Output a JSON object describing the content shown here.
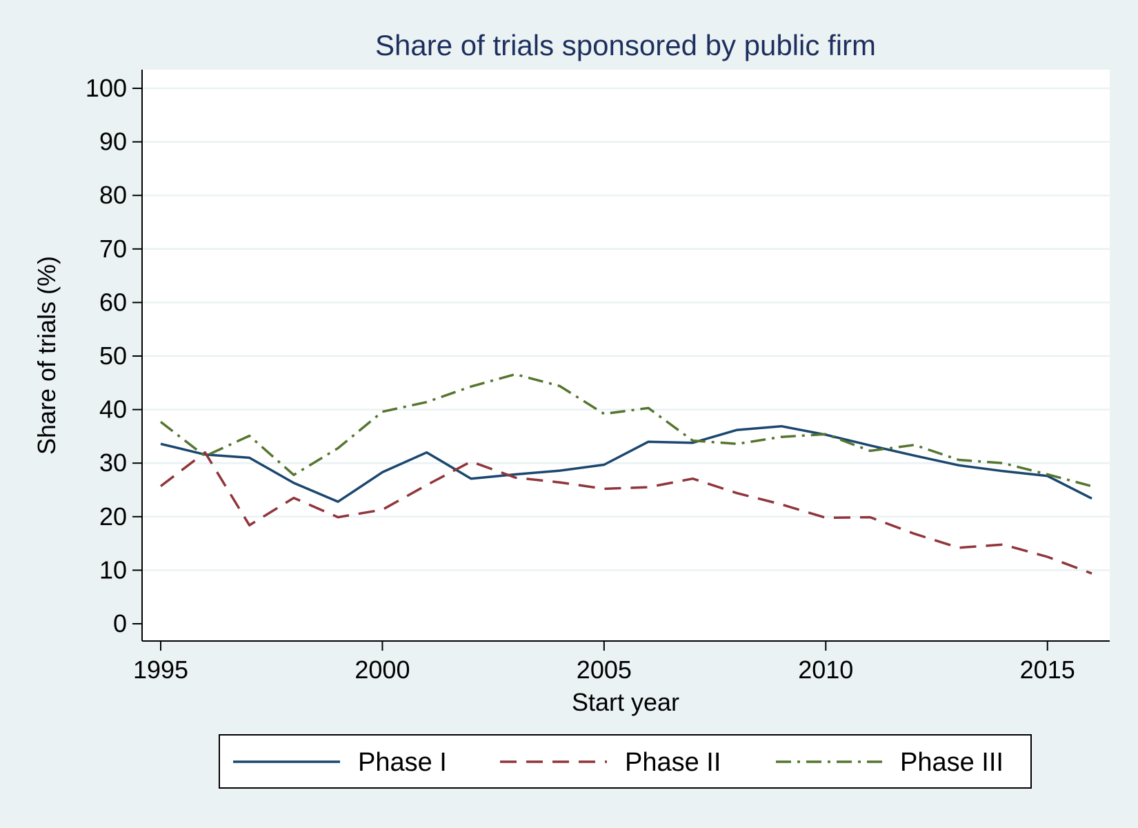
{
  "chart_data": {
    "type": "line",
    "title": "Share of trials sponsored by public firm",
    "xlabel": "Start year",
    "ylabel": "Share of trials (%)",
    "xlim": [
      1995,
      2016
    ],
    "ylim": [
      0,
      100
    ],
    "xticks": [
      1995,
      2000,
      2005,
      2010,
      2015
    ],
    "yticks": [
      0,
      10,
      20,
      30,
      40,
      50,
      60,
      70,
      80,
      90,
      100
    ],
    "grid": true,
    "legend_position": "bottom",
    "x": [
      1995,
      1996,
      1997,
      1998,
      1999,
      2000,
      2001,
      2002,
      2003,
      2004,
      2005,
      2006,
      2007,
      2008,
      2009,
      2010,
      2011,
      2012,
      2013,
      2014,
      2015,
      2016
    ],
    "series": [
      {
        "name": "Phase I",
        "color": "#1a476f",
        "dash": "solid",
        "values": [
          33.6,
          31.6,
          31.0,
          26.3,
          22.8,
          28.3,
          32.0,
          27.1,
          27.9,
          28.6,
          29.7,
          34.0,
          33.8,
          36.2,
          36.9,
          35.3,
          33.3,
          31.4,
          29.6,
          28.5,
          27.6,
          23.4
        ]
      },
      {
        "name": "Phase II",
        "color": "#90353b",
        "dash": "dash",
        "values": [
          25.7,
          32.0,
          18.4,
          23.5,
          19.9,
          21.3,
          25.9,
          30.3,
          27.3,
          26.4,
          25.2,
          25.5,
          27.1,
          24.4,
          22.3,
          19.8,
          19.9,
          16.8,
          14.2,
          14.8,
          12.5,
          9.4
        ]
      },
      {
        "name": "Phase III",
        "color": "#55752f",
        "dash": "dashdot",
        "values": [
          37.7,
          31.3,
          35.1,
          27.8,
          32.8,
          39.6,
          41.4,
          44.3,
          46.6,
          44.4,
          39.2,
          40.3,
          34.2,
          33.6,
          34.9,
          35.4,
          32.3,
          33.4,
          30.6,
          30.0,
          27.9,
          25.7
        ]
      }
    ]
  }
}
